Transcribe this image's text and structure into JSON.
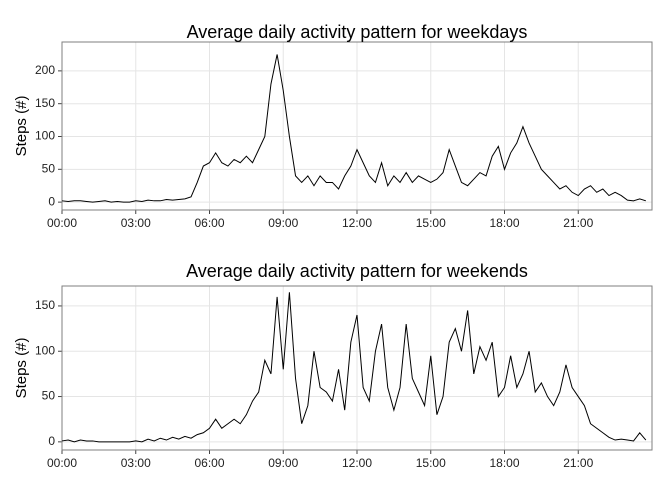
{
  "chart_data": [
    {
      "type": "line",
      "title": "Average daily activity pattern for weekdays",
      "y_label": "Steps (#)",
      "x": [
        0,
        0.25,
        0.5,
        0.75,
        1,
        1.25,
        1.5,
        1.75,
        2,
        2.25,
        2.5,
        2.75,
        3,
        3.25,
        3.5,
        3.75,
        4,
        4.25,
        4.5,
        4.75,
        5,
        5.25,
        5.5,
        5.75,
        6,
        6.25,
        6.5,
        6.75,
        7,
        7.25,
        7.5,
        7.75,
        8,
        8.25,
        8.5,
        8.75,
        9,
        9.25,
        9.5,
        9.75,
        10,
        10.25,
        10.5,
        10.75,
        11,
        11.25,
        11.5,
        11.75,
        12,
        12.25,
        12.5,
        12.75,
        13,
        13.25,
        13.5,
        13.75,
        14,
        14.25,
        14.5,
        14.75,
        15,
        15.25,
        15.5,
        15.75,
        16,
        16.25,
        16.5,
        16.75,
        17,
        17.25,
        17.5,
        17.75,
        18,
        18.25,
        18.5,
        18.75,
        19,
        19.25,
        19.5,
        19.75,
        20,
        20.25,
        20.5,
        20.75,
        21,
        21.25,
        21.5,
        21.75,
        22,
        22.25,
        22.5,
        22.75,
        23,
        23.25,
        23.5,
        23.75
      ],
      "values": [
        2,
        1,
        2,
        2,
        1,
        0,
        1,
        2,
        0,
        1,
        0,
        0,
        2,
        1,
        3,
        2,
        2,
        4,
        3,
        4,
        5,
        8,
        30,
        55,
        60,
        75,
        60,
        55,
        65,
        60,
        70,
        60,
        80,
        100,
        180,
        225,
        170,
        100,
        40,
        30,
        40,
        25,
        40,
        30,
        30,
        20,
        40,
        55,
        80,
        60,
        40,
        30,
        60,
        25,
        40,
        30,
        45,
        30,
        40,
        35,
        30,
        35,
        45,
        80,
        55,
        30,
        25,
        35,
        45,
        40,
        70,
        85,
        50,
        75,
        90,
        115,
        90,
        70,
        50,
        40,
        30,
        20,
        25,
        15,
        10,
        20,
        25,
        15,
        20,
        10,
        15,
        10,
        3,
        2,
        5,
        2
      ],
      "color": "#000000",
      "xlim": [
        0,
        24
      ],
      "ylim": [
        -12,
        244
      ],
      "xticks": [
        {
          "value": 0,
          "label": "00:00"
        },
        {
          "value": 3,
          "label": "03:00"
        },
        {
          "value": 6,
          "label": "06:00"
        },
        {
          "value": 9,
          "label": "09:00"
        },
        {
          "value": 12,
          "label": "12:00"
        },
        {
          "value": 15,
          "label": "15:00"
        },
        {
          "value": 18,
          "label": "18:00"
        },
        {
          "value": 21,
          "label": "21:00"
        }
      ],
      "yticks": [
        0,
        50,
        100,
        150,
        200
      ],
      "grid": true
    },
    {
      "type": "line",
      "title": "Average daily activity pattern for weekends",
      "y_label": "Steps (#)",
      "x": [
        0,
        0.25,
        0.5,
        0.75,
        1,
        1.25,
        1.5,
        1.75,
        2,
        2.25,
        2.5,
        2.75,
        3,
        3.25,
        3.5,
        3.75,
        4,
        4.25,
        4.5,
        4.75,
        5,
        5.25,
        5.5,
        5.75,
        6,
        6.25,
        6.5,
        6.75,
        7,
        7.25,
        7.5,
        7.75,
        8,
        8.25,
        8.5,
        8.75,
        9,
        9.25,
        9.5,
        9.75,
        10,
        10.25,
        10.5,
        10.75,
        11,
        11.25,
        11.5,
        11.75,
        12,
        12.25,
        12.5,
        12.75,
        13,
        13.25,
        13.5,
        13.75,
        14,
        14.25,
        14.5,
        14.75,
        15,
        15.25,
        15.5,
        15.75,
        16,
        16.25,
        16.5,
        16.75,
        17,
        17.25,
        17.5,
        17.75,
        18,
        18.25,
        18.5,
        18.75,
        19,
        19.25,
        19.5,
        19.75,
        20,
        20.25,
        20.5,
        20.75,
        21,
        21.25,
        21.5,
        21.75,
        22,
        22.25,
        22.5,
        22.75,
        23,
        23.25,
        23.5,
        23.75
      ],
      "values": [
        1,
        2,
        0,
        2,
        1,
        1,
        0,
        0,
        0,
        0,
        0,
        0,
        1,
        0,
        3,
        1,
        4,
        2,
        5,
        3,
        6,
        4,
        8,
        10,
        15,
        25,
        15,
        20,
        25,
        20,
        30,
        45,
        55,
        90,
        75,
        160,
        80,
        165,
        70,
        20,
        40,
        100,
        60,
        55,
        45,
        80,
        35,
        110,
        140,
        60,
        45,
        100,
        130,
        60,
        35,
        60,
        130,
        70,
        55,
        40,
        95,
        30,
        50,
        110,
        125,
        100,
        145,
        75,
        105,
        90,
        110,
        50,
        60,
        95,
        60,
        75,
        100,
        55,
        65,
        50,
        40,
        55,
        85,
        60,
        50,
        40,
        20,
        15,
        10,
        5,
        2,
        3,
        2,
        1,
        10,
        2
      ],
      "color": "#000000",
      "xlim": [
        0,
        24
      ],
      "ylim": [
        -9,
        172
      ],
      "xticks": [
        {
          "value": 0,
          "label": "00:00"
        },
        {
          "value": 3,
          "label": "03:00"
        },
        {
          "value": 6,
          "label": "06:00"
        },
        {
          "value": 9,
          "label": "09:00"
        },
        {
          "value": 12,
          "label": "12:00"
        },
        {
          "value": 15,
          "label": "15:00"
        },
        {
          "value": 18,
          "label": "18:00"
        },
        {
          "value": 21,
          "label": "21:00"
        }
      ],
      "yticks": [
        0,
        50,
        100,
        150
      ],
      "grid": true
    }
  ]
}
